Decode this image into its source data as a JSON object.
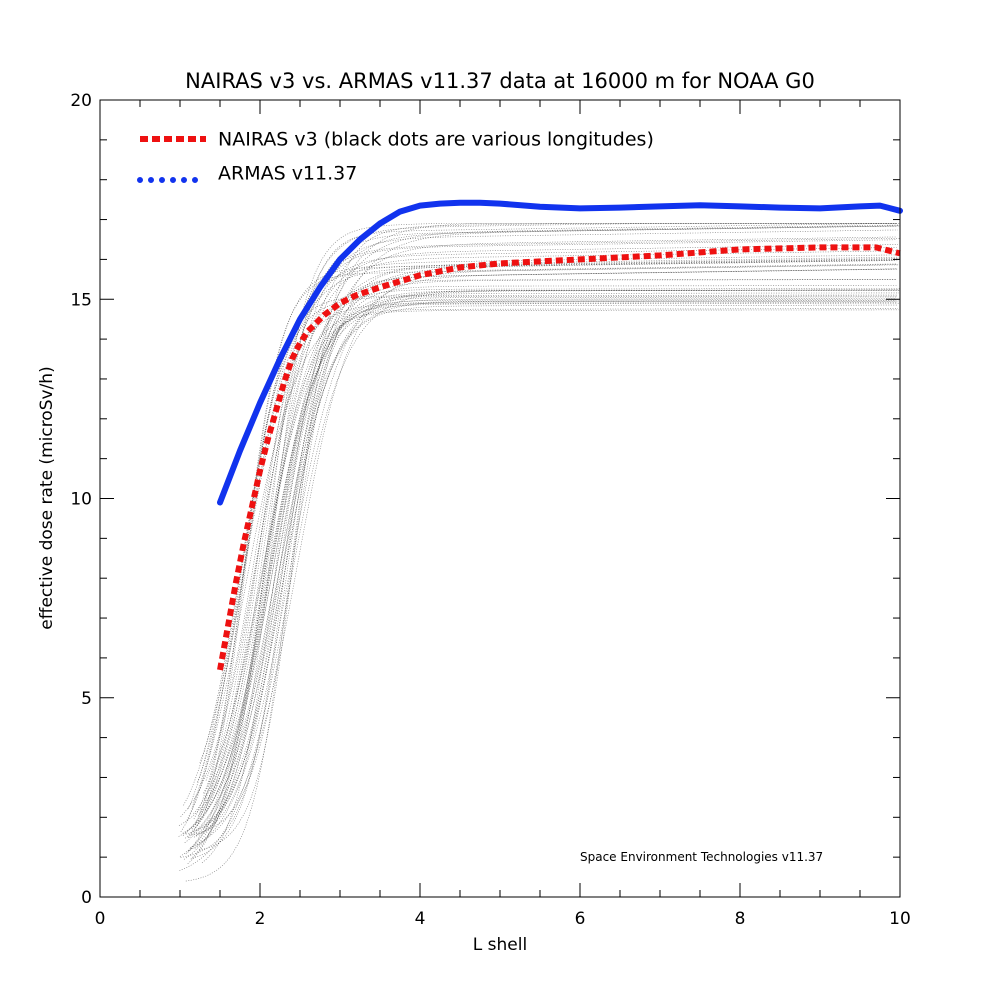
{
  "chart_data": {
    "type": "line",
    "title": "NAIRAS  v3 vs. ARMAS v11.37 data at 16000 m for NOAA G0",
    "xlabel": "L shell",
    "ylabel": "effective dose rate (microSv/h)",
    "xlim": [
      0,
      10
    ],
    "ylim": [
      0,
      20
    ],
    "x_ticks": [
      0,
      2,
      4,
      6,
      8,
      10
    ],
    "y_ticks": [
      0,
      5,
      10,
      15,
      20
    ],
    "x_minor_step": 0.5,
    "y_minor_step": 1,
    "grid": false,
    "legend_position": "top-left",
    "annotation": "Space Environment Technologies v11.37",
    "series": [
      {
        "name": "NAIRAS v3 (black dots are various longitudes)",
        "color": "#ee1111",
        "style": "dashed",
        "x": [
          1.5,
          1.6,
          1.7,
          1.8,
          1.9,
          2.0,
          2.1,
          2.2,
          2.3,
          2.4,
          2.5,
          2.6,
          2.7,
          2.8,
          3.0,
          3.2,
          3.5,
          4.0,
          4.5,
          5.0,
          6.0,
          7.0,
          8.0,
          9.0,
          9.7,
          10.0
        ],
        "y": [
          5.7,
          6.8,
          7.9,
          8.9,
          9.8,
          10.7,
          11.5,
          12.2,
          12.9,
          13.5,
          13.9,
          14.2,
          14.4,
          14.6,
          14.9,
          15.1,
          15.3,
          15.6,
          15.8,
          15.9,
          16.0,
          16.1,
          16.25,
          16.3,
          16.3,
          16.15
        ]
      },
      {
        "name": "ARMAS v11.37",
        "color": "#1133ee",
        "style": "dotted",
        "x": [
          1.5,
          1.75,
          2.0,
          2.25,
          2.5,
          2.75,
          3.0,
          3.25,
          3.5,
          3.75,
          4.0,
          4.25,
          4.5,
          4.75,
          5.0,
          5.5,
          6.0,
          6.5,
          7.0,
          7.5,
          8.0,
          8.5,
          9.0,
          9.5,
          9.75,
          10.0
        ],
        "y": [
          9.9,
          11.2,
          12.4,
          13.5,
          14.5,
          15.3,
          16.0,
          16.5,
          16.9,
          17.2,
          17.35,
          17.4,
          17.42,
          17.42,
          17.4,
          17.32,
          17.28,
          17.3,
          17.33,
          17.36,
          17.33,
          17.3,
          17.28,
          17.33,
          17.35,
          17.22
        ]
      }
    ]
  }
}
